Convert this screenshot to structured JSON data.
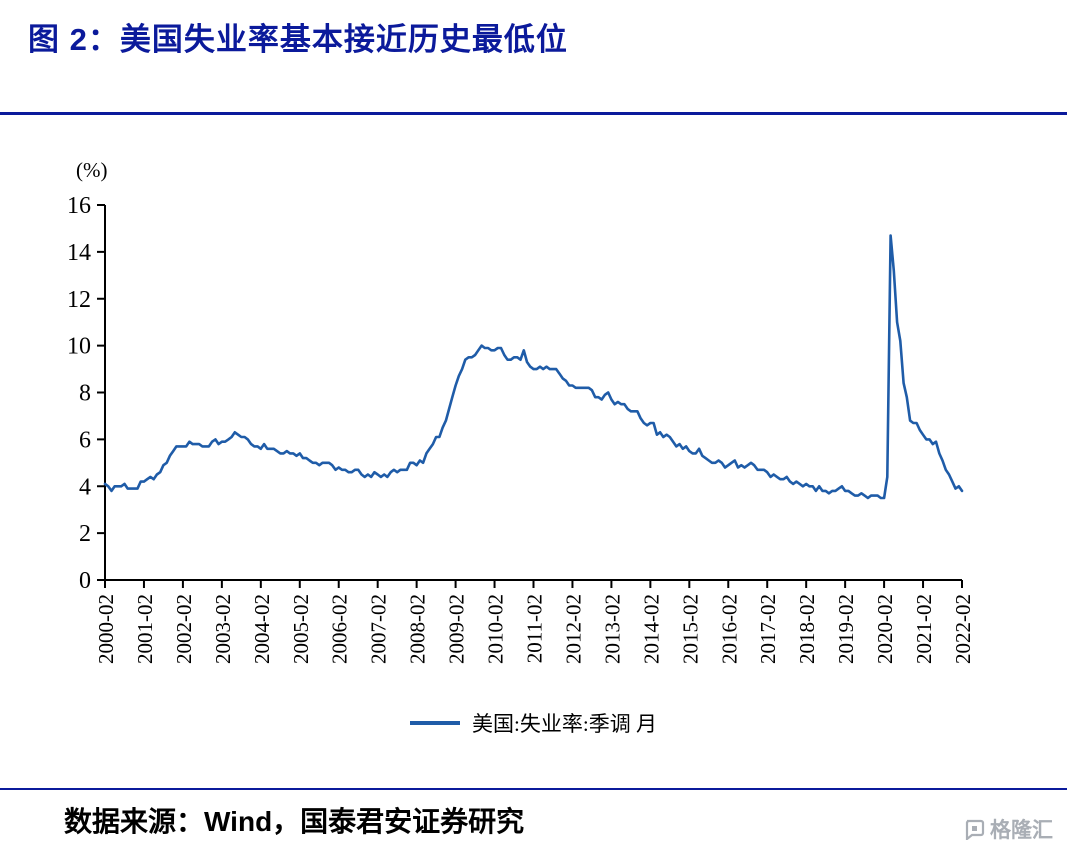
{
  "title": "图 2：美国失业率基本接近历史最低位",
  "unit_label": "(%)",
  "legend": "美国:失业率:季调 月",
  "source": "数据来源：Wind，国泰君安证券研究",
  "watermark": "格隆汇",
  "colors": {
    "navy": "#0b1a9b",
    "line": "#1f5ca8"
  },
  "chart_data": {
    "type": "line",
    "title": "图 2：美国失业率基本接近历史最低位",
    "ylabel": "(%)",
    "ylim": [
      0,
      16
    ],
    "y_ticks": [
      0,
      2,
      4,
      6,
      8,
      10,
      12,
      14,
      16
    ],
    "grid": false,
    "legend_position": "bottom",
    "x_start": "2000-02",
    "x_freq": "monthly",
    "x_tick_labels": [
      "2000-02",
      "2001-02",
      "2002-02",
      "2003-02",
      "2004-02",
      "2005-02",
      "2006-02",
      "2007-02",
      "2008-02",
      "2009-02",
      "2010-02",
      "2011-02",
      "2012-02",
      "2013-02",
      "2014-02",
      "2015-02",
      "2016-02",
      "2017-02",
      "2018-02",
      "2019-02",
      "2020-02",
      "2021-02",
      "2022-02"
    ],
    "series": [
      {
        "name": "美国:失业率:季调 月",
        "values": [
          4.1,
          4.0,
          3.8,
          4.0,
          4.0,
          4.0,
          4.1,
          3.9,
          3.9,
          3.9,
          3.9,
          4.2,
          4.2,
          4.3,
          4.4,
          4.3,
          4.5,
          4.6,
          4.9,
          5.0,
          5.3,
          5.5,
          5.7,
          5.7,
          5.7,
          5.7,
          5.9,
          5.8,
          5.8,
          5.8,
          5.7,
          5.7,
          5.7,
          5.9,
          6.0,
          5.8,
          5.9,
          5.9,
          6.0,
          6.1,
          6.3,
          6.2,
          6.1,
          6.1,
          6.0,
          5.8,
          5.7,
          5.7,
          5.6,
          5.8,
          5.6,
          5.6,
          5.6,
          5.5,
          5.4,
          5.4,
          5.5,
          5.4,
          5.4,
          5.3,
          5.4,
          5.2,
          5.2,
          5.1,
          5.0,
          5.0,
          4.9,
          5.0,
          5.0,
          5.0,
          4.9,
          4.7,
          4.8,
          4.7,
          4.7,
          4.6,
          4.6,
          4.7,
          4.7,
          4.5,
          4.4,
          4.5,
          4.4,
          4.6,
          4.5,
          4.4,
          4.5,
          4.4,
          4.6,
          4.7,
          4.6,
          4.7,
          4.7,
          4.7,
          5.0,
          5.0,
          4.9,
          5.1,
          5.0,
          5.4,
          5.6,
          5.8,
          6.1,
          6.1,
          6.5,
          6.8,
          7.3,
          7.8,
          8.3,
          8.7,
          9.0,
          9.4,
          9.5,
          9.5,
          9.6,
          9.8,
          10.0,
          9.9,
          9.9,
          9.8,
          9.8,
          9.9,
          9.9,
          9.6,
          9.4,
          9.4,
          9.5,
          9.5,
          9.4,
          9.8,
          9.3,
          9.1,
          9.0,
          9.0,
          9.1,
          9.0,
          9.1,
          9.0,
          9.0,
          9.0,
          8.8,
          8.6,
          8.5,
          8.3,
          8.3,
          8.2,
          8.2,
          8.2,
          8.2,
          8.2,
          8.1,
          7.8,
          7.8,
          7.7,
          7.9,
          8.0,
          7.7,
          7.5,
          7.6,
          7.5,
          7.5,
          7.3,
          7.2,
          7.2,
          7.2,
          6.9,
          6.7,
          6.6,
          6.7,
          6.7,
          6.2,
          6.3,
          6.1,
          6.2,
          6.1,
          5.9,
          5.7,
          5.8,
          5.6,
          5.7,
          5.5,
          5.4,
          5.4,
          5.6,
          5.3,
          5.2,
          5.1,
          5.0,
          5.0,
          5.1,
          5.0,
          4.8,
          4.9,
          5.0,
          5.1,
          4.8,
          4.9,
          4.8,
          4.9,
          5.0,
          4.9,
          4.7,
          4.7,
          4.7,
          4.6,
          4.4,
          4.5,
          4.4,
          4.3,
          4.3,
          4.4,
          4.2,
          4.1,
          4.2,
          4.1,
          4.0,
          4.1,
          4.0,
          4.0,
          3.8,
          4.0,
          3.8,
          3.8,
          3.7,
          3.8,
          3.8,
          3.9,
          4.0,
          3.8,
          3.8,
          3.7,
          3.6,
          3.6,
          3.7,
          3.6,
          3.5,
          3.6,
          3.6,
          3.6,
          3.5,
          3.5,
          4.4,
          14.7,
          13.2,
          11.0,
          10.2,
          8.4,
          7.8,
          6.8,
          6.7,
          6.7,
          6.4,
          6.2,
          6.0,
          6.0,
          5.8,
          5.9,
          5.4,
          5.1,
          4.7,
          4.5,
          4.2,
          3.9,
          4.0,
          3.8
        ]
      }
    ]
  }
}
